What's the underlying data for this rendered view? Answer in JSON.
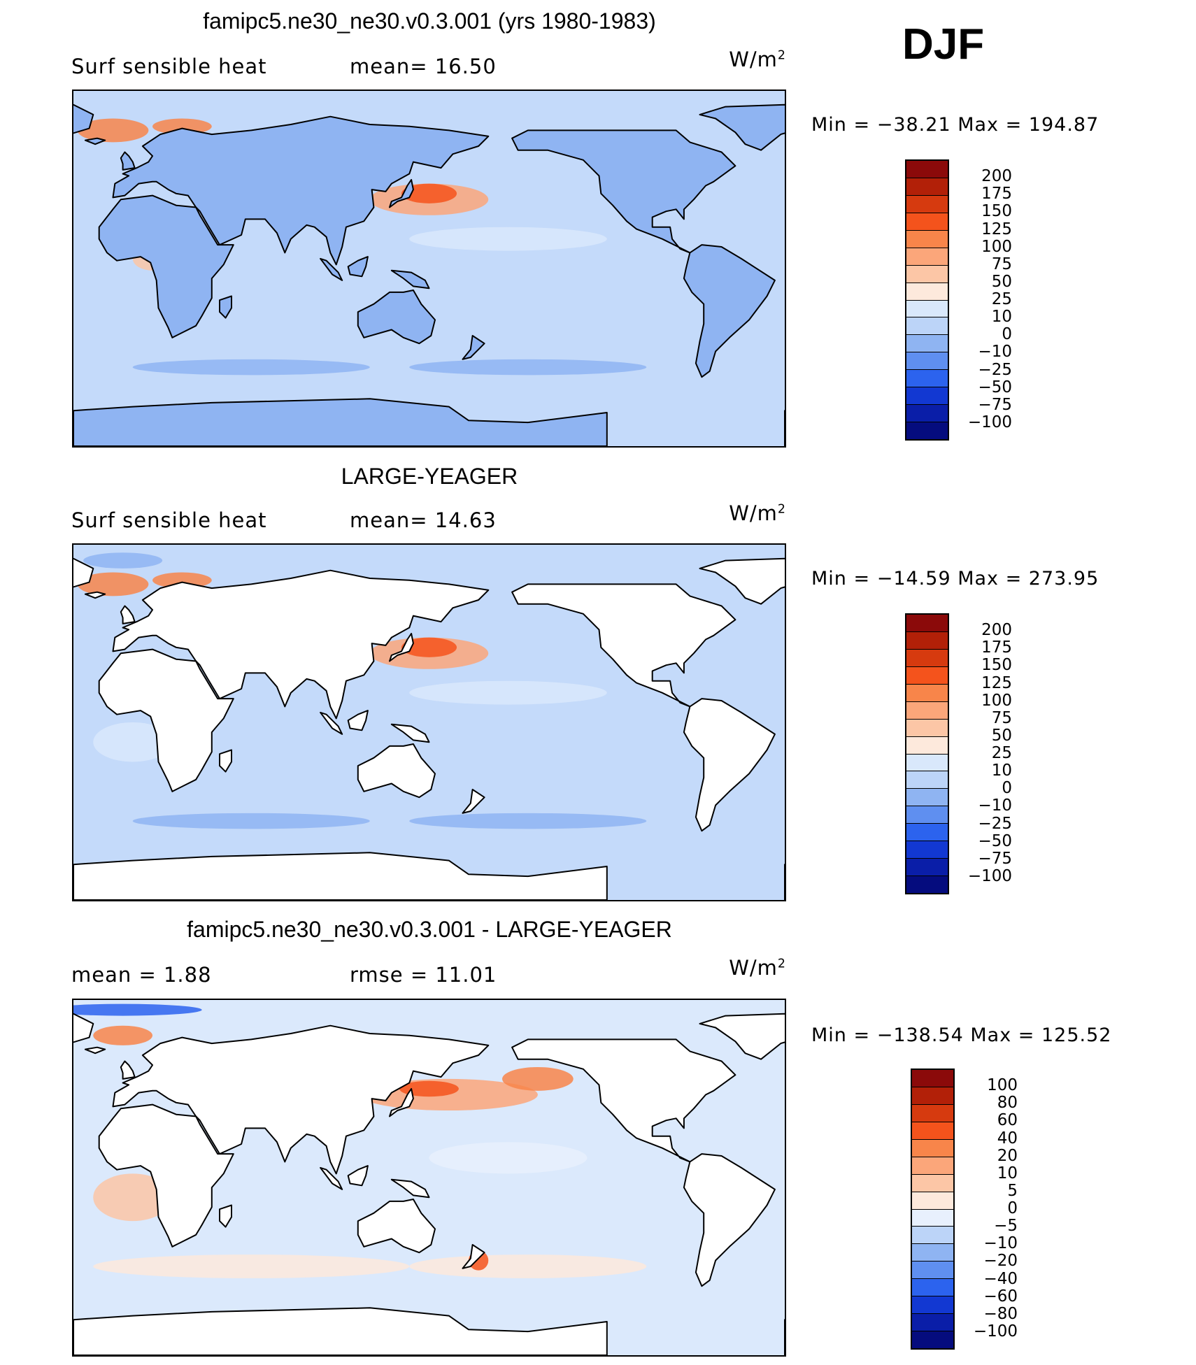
{
  "season": "DJF",
  "units": "W/m",
  "units_sup": "2",
  "panels": [
    {
      "title": "famipc5.ne30_ne30.v0.3.001 (yrs 1980-1983)",
      "left_label": "Surf  sensible  heat",
      "mid_label": "mean=   16.50",
      "min_max": "Min  =  −38.21  Max  =  194.87",
      "ocean_color": "#c4dafa",
      "land_color": "#8fb4f2",
      "land_filled": true
    },
    {
      "title": "LARGE-YEAGER",
      "left_label": "Surf  sensible  heat",
      "mid_label": "mean=   14.63",
      "min_max": "Min  =  −14.59  Max  =  273.95",
      "ocean_color": "#c4dafa",
      "land_color": "#ffffff",
      "land_filled": false
    },
    {
      "title": "famipc5.ne30_ne30.v0.3.001 - LARGE-YEAGER",
      "left_label": "mean  =      1.88",
      "mid_label": "rmse  =     11.01",
      "min_max": "Min  =  −138.54  Max  =  125.52",
      "ocean_color": "#dbe9fc",
      "land_color": "#ffffff",
      "land_filled": false
    }
  ],
  "colorbars": [
    {
      "labels": [
        "200",
        "175",
        "150",
        "125",
        "100",
        "75",
        "50",
        "25",
        "10",
        "0",
        "−10",
        "−25",
        "−50",
        "−75",
        "−100"
      ],
      "colors": [
        "#8b0a0a",
        "#b22008",
        "#d63a0f",
        "#f4531c",
        "#f8854a",
        "#fba67a",
        "#fcc6a6",
        "#fde9dc",
        "#d9e8fb",
        "#bcd4f8",
        "#8fb4f2",
        "#5f8ff0",
        "#2c63ee",
        "#1238d2",
        "#0a1ea8",
        "#050c7e"
      ]
    },
    {
      "labels": [
        "200",
        "175",
        "150",
        "125",
        "100",
        "75",
        "50",
        "25",
        "10",
        "0",
        "−10",
        "−25",
        "−50",
        "−75",
        "−100"
      ],
      "colors": [
        "#8b0a0a",
        "#b22008",
        "#d63a0f",
        "#f4531c",
        "#f8854a",
        "#fba67a",
        "#fcc6a6",
        "#fde9dc",
        "#d9e8fb",
        "#bcd4f8",
        "#8fb4f2",
        "#5f8ff0",
        "#2c63ee",
        "#1238d2",
        "#0a1ea8",
        "#050c7e"
      ]
    },
    {
      "labels": [
        "100",
        "80",
        "60",
        "40",
        "20",
        "10",
        "5",
        "0",
        "−5",
        "−10",
        "−20",
        "−40",
        "−60",
        "−80",
        "−100"
      ],
      "colors": [
        "#8b0a0a",
        "#b22008",
        "#d63a0f",
        "#f4531c",
        "#f8854a",
        "#fba67a",
        "#fcc6a6",
        "#fde9dc",
        "#e8f0fd",
        "#bcd4f8",
        "#8fb4f2",
        "#5f8ff0",
        "#2c63ee",
        "#1238d2",
        "#0a1ea8",
        "#050c7e"
      ]
    }
  ]
}
